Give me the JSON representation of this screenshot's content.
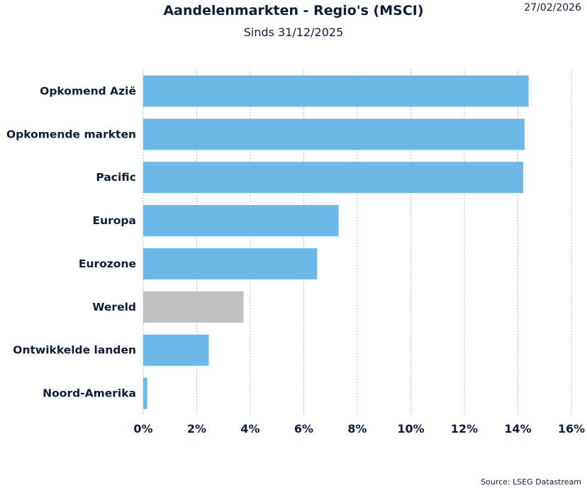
{
  "date": "27/02/2026",
  "source": "Source: LSEG Datastream",
  "chart_data": {
    "type": "bar",
    "orientation": "horizontal",
    "title": "Aandelenmarkten - Regio's (MSCI)",
    "subtitle": "Sinds 31/12/2025",
    "categories": [
      "Opkomend Azië",
      "Opkomende markten",
      "Pacific",
      "Europa",
      "Eurozone",
      "Wereld",
      "Ontwikkelde landen",
      "Noord-Amerika"
    ],
    "values": [
      14.4,
      14.25,
      14.2,
      7.3,
      6.5,
      3.75,
      2.45,
      0.15
    ],
    "unit": "%",
    "xlim": [
      0,
      16
    ],
    "xticks": [
      0,
      2,
      4,
      6,
      8,
      10,
      12,
      14,
      16
    ],
    "xtick_labels": [
      "0%",
      "2%",
      "4%",
      "6%",
      "8%",
      "10%",
      "12%",
      "14%",
      "16%"
    ],
    "grid": "vertical dotted",
    "colors": {
      "default": "#6cb8e6",
      "highlight": "#c0c0c0"
    },
    "highlight_category": "Wereld"
  }
}
